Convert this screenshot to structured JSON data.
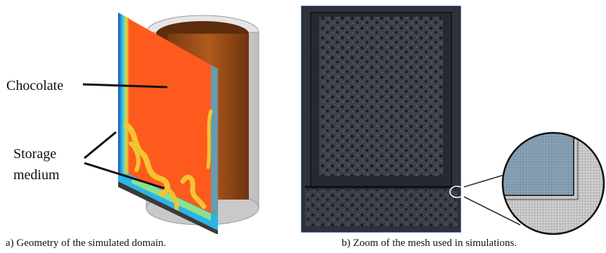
{
  "panel_a": {
    "label_chocolate": "Chocolate",
    "label_storage_line1": "Storage",
    "label_storage_line2": "medium",
    "caption": "a) Geometry of the simulated domain."
  },
  "panel_b": {
    "caption": "b) Zoom of the mesh used in simulations."
  },
  "colors": {
    "chocolate_fill": "#ff5a1e",
    "storage_medium": "#f3c431",
    "cylinder_copper": "#b05a1c",
    "mesh_background": "#2a2d33",
    "mesh_border": "#5b8fd6"
  }
}
